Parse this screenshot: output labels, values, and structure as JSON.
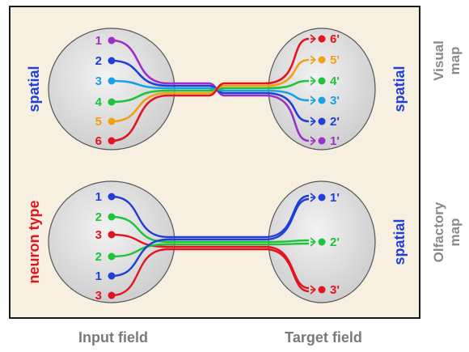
{
  "panels": {
    "visual": {
      "side_label": "Visual map",
      "side_label_line1": "Visual",
      "side_label_line2": "map",
      "input_label": "spatial",
      "target_label": "spatial",
      "inputs": [
        {
          "label": "1",
          "color": "#9b2fc8"
        },
        {
          "label": "2",
          "color": "#1f3fd6"
        },
        {
          "label": "3",
          "color": "#1aa0e6"
        },
        {
          "label": "4",
          "color": "#1ec43a"
        },
        {
          "label": "5",
          "color": "#f0a012"
        },
        {
          "label": "6",
          "color": "#e3141e"
        }
      ],
      "targets": [
        {
          "label": "6'",
          "color": "#e3141e"
        },
        {
          "label": "5'",
          "color": "#f0a012"
        },
        {
          "label": "4'",
          "color": "#1ec43a"
        },
        {
          "label": "3'",
          "color": "#1aa0e6"
        },
        {
          "label": "2'",
          "color": "#1f3fd6"
        },
        {
          "label": "1'",
          "color": "#9b2fc8"
        }
      ]
    },
    "olfactory": {
      "side_label": "Olfactory map",
      "side_label_line1": "Olfactory",
      "side_label_line2": "map",
      "input_label": "neuron type",
      "target_label": "spatial",
      "inputs": [
        {
          "label": "1",
          "color": "#1f3fd6"
        },
        {
          "label": "2",
          "color": "#1ec43a"
        },
        {
          "label": "3",
          "color": "#e3141e"
        },
        {
          "label": "2",
          "color": "#1ec43a"
        },
        {
          "label": "1",
          "color": "#1f3fd6"
        },
        {
          "label": "3",
          "color": "#e3141e"
        }
      ],
      "targets": [
        {
          "label": "1'",
          "color": "#1f3fd6"
        },
        {
          "label": "2'",
          "color": "#1ec43a"
        },
        {
          "label": "3'",
          "color": "#e3141e"
        }
      ]
    }
  },
  "footer": {
    "input_field": "Input field",
    "target_field": "Target field"
  },
  "colors": {
    "frame_bg": "#f7f0e1",
    "ellipse_fill": "#d9d9d9",
    "spatial_text": "#1f3fd6",
    "neuron_type_text": "#e3141e",
    "side_text": "#8a8a8a",
    "footer_text": "#7a7a7a"
  }
}
